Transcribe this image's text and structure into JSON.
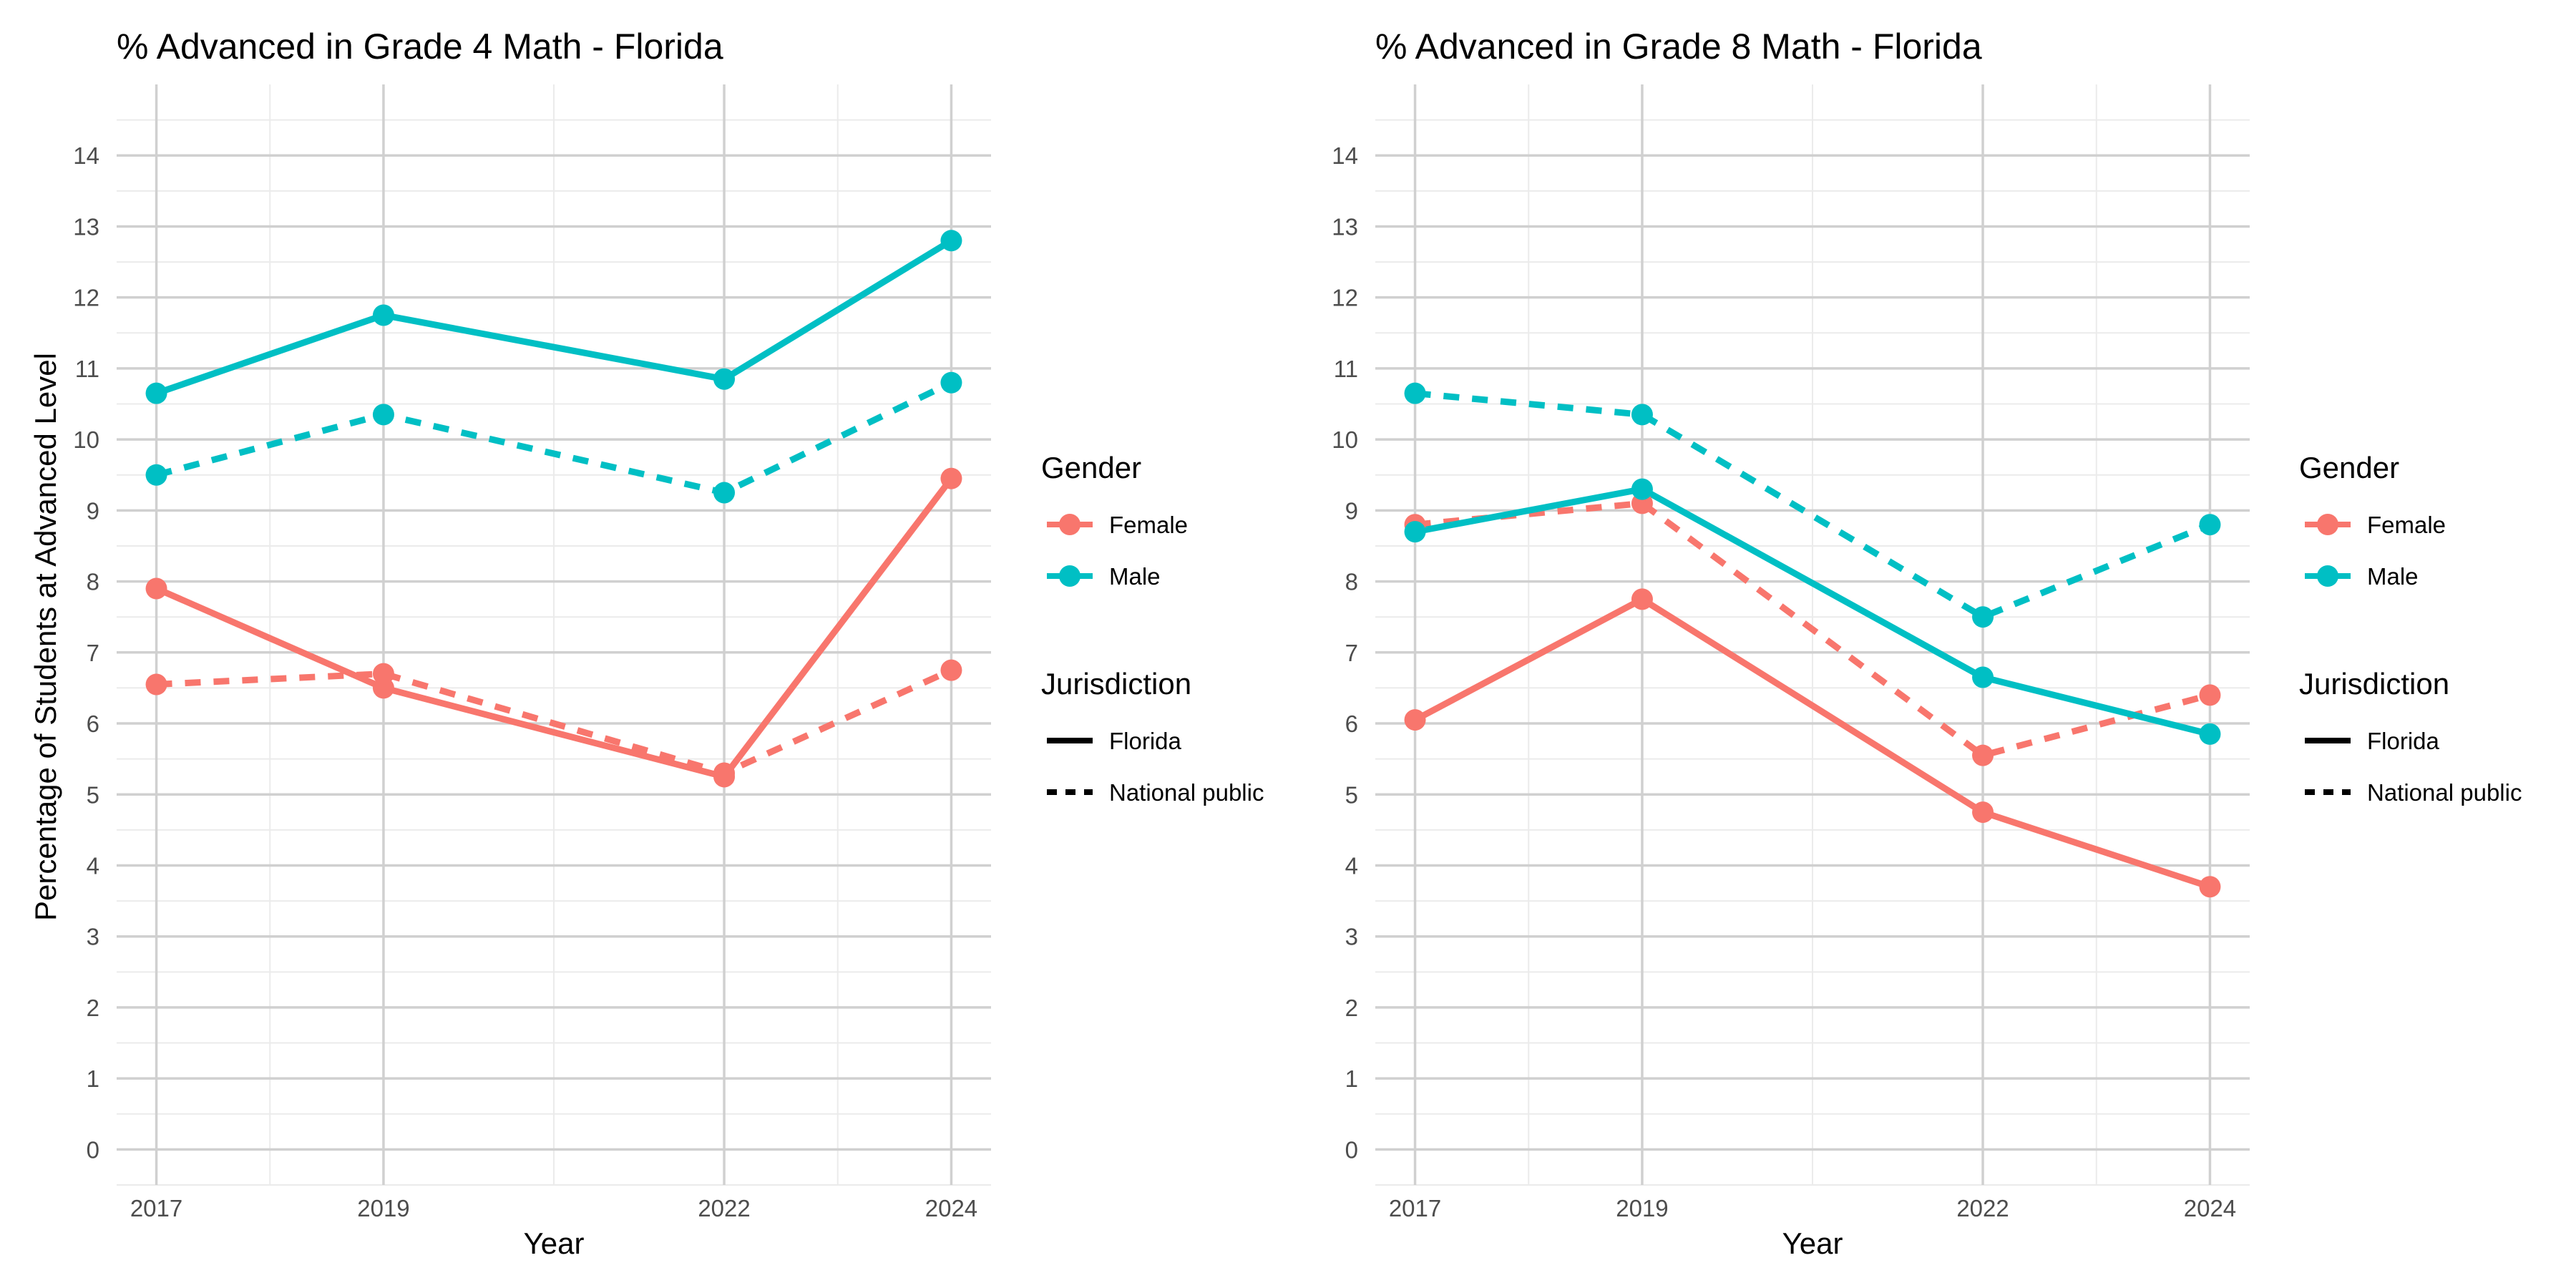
{
  "figure": {
    "ylabel": "Percentage of Students at Advanced Level",
    "xlabel": "Year",
    "colors": {
      "Female": "#F8766D",
      "Male": "#00BFC4"
    }
  },
  "legend": {
    "gender_title": "Gender",
    "gender_items": [
      "Female",
      "Male"
    ],
    "jurisdiction_title": "Jurisdiction",
    "jurisdiction_items": [
      "Florida",
      "National public"
    ]
  },
  "chart_data": [
    {
      "type": "line",
      "title": "% Advanced in Grade 4 Math - Florida",
      "xlabel": "Year",
      "ylabel": "Percentage of Students at Advanced Level",
      "x": [
        2017,
        2019,
        2022,
        2024
      ],
      "ylim": [
        -0.5,
        15
      ],
      "yticks": [
        0,
        1,
        2,
        3,
        4,
        5,
        6,
        7,
        8,
        9,
        10,
        11,
        12,
        13,
        14
      ],
      "grid": true,
      "legend_position": "right",
      "series": [
        {
          "gender": "Female",
          "jurisdiction": "Florida",
          "values": [
            7.9,
            6.5,
            5.25,
            9.45
          ]
        },
        {
          "gender": "Female",
          "jurisdiction": "National public",
          "values": [
            6.55,
            6.7,
            5.3,
            6.75
          ]
        },
        {
          "gender": "Male",
          "jurisdiction": "Florida",
          "values": [
            10.65,
            11.75,
            10.85,
            12.8
          ]
        },
        {
          "gender": "Male",
          "jurisdiction": "National public",
          "values": [
            9.5,
            10.35,
            9.25,
            10.8
          ]
        }
      ]
    },
    {
      "type": "line",
      "title": "% Advanced in Grade 8 Math - Florida",
      "xlabel": "Year",
      "ylabel": "",
      "x": [
        2017,
        2019,
        2022,
        2024
      ],
      "ylim": [
        -0.5,
        15
      ],
      "yticks": [
        0,
        1,
        2,
        3,
        4,
        5,
        6,
        7,
        8,
        9,
        10,
        11,
        12,
        13,
        14
      ],
      "grid": true,
      "legend_position": "right",
      "series": [
        {
          "gender": "Female",
          "jurisdiction": "Florida",
          "values": [
            6.05,
            7.75,
            4.75,
            3.7
          ]
        },
        {
          "gender": "Female",
          "jurisdiction": "National public",
          "values": [
            8.8,
            9.1,
            5.55,
            6.4
          ]
        },
        {
          "gender": "Male",
          "jurisdiction": "Florida",
          "values": [
            8.7,
            9.3,
            6.65,
            5.85
          ]
        },
        {
          "gender": "Male",
          "jurisdiction": "National public",
          "values": [
            10.65,
            10.35,
            7.5,
            8.8
          ]
        }
      ]
    }
  ]
}
